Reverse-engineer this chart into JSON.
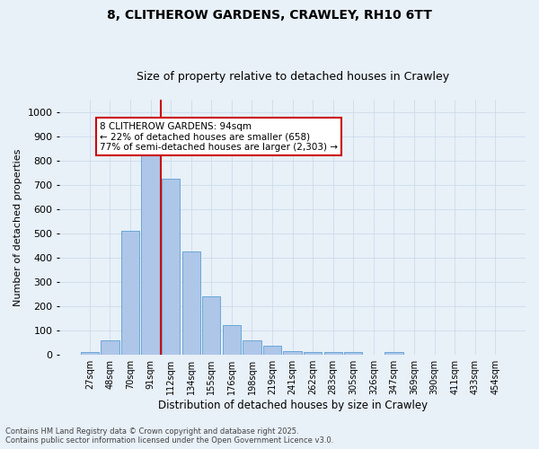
{
  "title": "8, CLITHEROW GARDENS, CRAWLEY, RH10 6TT",
  "subtitle": "Size of property relative to detached houses in Crawley",
  "xlabel": "Distribution of detached houses by size in Crawley",
  "ylabel": "Number of detached properties",
  "footnote1": "Contains HM Land Registry data © Crown copyright and database right 2025.",
  "footnote2": "Contains public sector information licensed under the Open Government Licence v3.0.",
  "bin_labels": [
    "27sqm",
    "48sqm",
    "70sqm",
    "91sqm",
    "112sqm",
    "134sqm",
    "155sqm",
    "176sqm",
    "198sqm",
    "219sqm",
    "241sqm",
    "262sqm",
    "283sqm",
    "305sqm",
    "326sqm",
    "347sqm",
    "369sqm",
    "390sqm",
    "411sqm",
    "433sqm",
    "454sqm"
  ],
  "bar_values": [
    10,
    60,
    510,
    830,
    725,
    425,
    240,
    120,
    57,
    35,
    15,
    10,
    10,
    10,
    0,
    10,
    0,
    0,
    0,
    0,
    0
  ],
  "bar_color": "#aec6e8",
  "bar_edge_color": "#5a9fd4",
  "vline_color": "#cc0000",
  "vline_x": 3.5,
  "annotation_box_text": "8 CLITHEROW GARDENS: 94sqm\n← 22% of detached houses are smaller (658)\n77% of semi-detached houses are larger (2,303) →",
  "annotation_box_color": "#cc0000",
  "annotation_box_bg": "#ffffff",
  "ylim": [
    0,
    1050
  ],
  "yticks": [
    0,
    100,
    200,
    300,
    400,
    500,
    600,
    700,
    800,
    900,
    1000
  ],
  "grid_color": "#c8d8e8",
  "background_color": "#e8f0f8",
  "title_fontsize": 10,
  "subtitle_fontsize": 9,
  "annot_fontsize": 7.5,
  "ylabel_fontsize": 8,
  "xlabel_fontsize": 8.5,
  "footnote_fontsize": 6,
  "ytick_fontsize": 8,
  "xtick_fontsize": 7
}
